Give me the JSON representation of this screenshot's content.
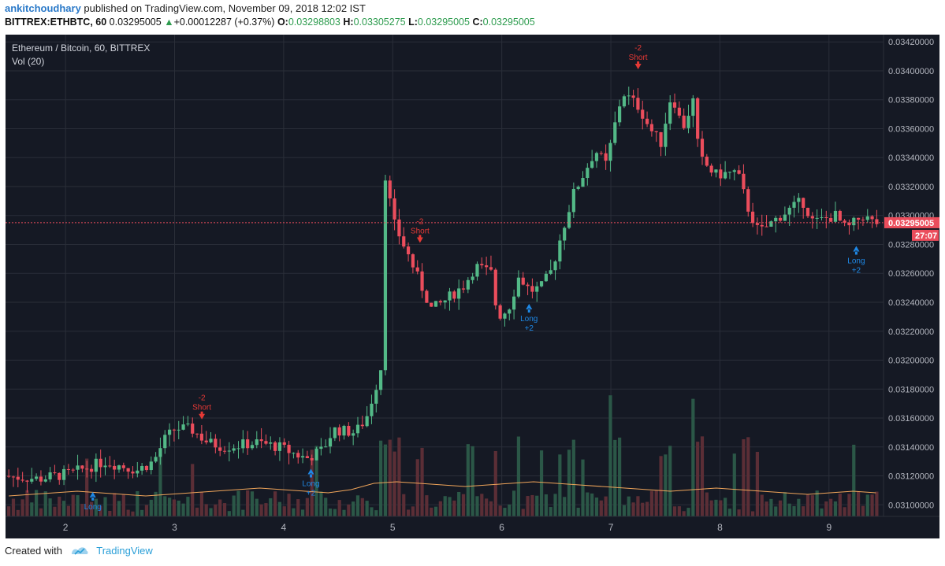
{
  "header": {
    "author": "ankitchoudhary",
    "published": "published on TradingView.com, November 09, 2018 12:02 IST",
    "symbol": "BITTREX:ETHBTC, 60",
    "last": "0.03295005",
    "change_arrow": "▲",
    "change": "+0.00012287 (+0.37%)",
    "o_label": "O:",
    "o_value": "0.03298803",
    "h_label": "H:",
    "h_value": "0.03305275",
    "l_label": "L:",
    "l_value": "0.03295005",
    "c_label": "C:",
    "c_value": "0.03295005"
  },
  "legend": {
    "title": "Ethereum / Bitcoin, 60, BITTREX",
    "volume": "Vol (20)"
  },
  "price_tag": {
    "value": "0.03295005",
    "timer": "27:07"
  },
  "footer": {
    "created": "Created with",
    "brand": "TradingView"
  },
  "colors": {
    "background": "#151924",
    "grid": "#2a2e39",
    "up": "#53b987",
    "down": "#eb4d5c",
    "up_vol": "#2b5747",
    "down_vol": "#5b2e36",
    "ma": "#f0a55a",
    "long_signal": "#1e88e5",
    "short_signal": "#e53935",
    "axis_text": "#b2b5be"
  },
  "signals": [
    {
      "type": "short",
      "x": 3.25,
      "price": 0.03158,
      "label1": "-2",
      "label2": "Short"
    },
    {
      "type": "long",
      "x": 2.25,
      "price": 0.0311,
      "label1": "Long",
      "label2": ""
    },
    {
      "type": "long",
      "x": 4.25,
      "price": 0.03126,
      "label1": "Long",
      "label2": "+2"
    },
    {
      "type": "short",
      "x": 5.25,
      "price": 0.0328,
      "label1": "-2",
      "label2": "Short"
    },
    {
      "type": "long",
      "x": 6.25,
      "price": 0.0324,
      "label1": "Long",
      "label2": "+2"
    },
    {
      "type": "short",
      "x": 7.25,
      "price": 0.034,
      "label1": "-2",
      "label2": "Short"
    },
    {
      "type": "long",
      "x": 9.25,
      "price": 0.0328,
      "label1": "Long",
      "label2": "+2"
    }
  ],
  "chart_data": {
    "type": "candlestick",
    "title": "Ethereum / Bitcoin, 60, BITTREX",
    "xlabel": "",
    "ylabel": "",
    "x_ticks": [
      "2",
      "3",
      "4",
      "5",
      "6",
      "7",
      "8",
      "9"
    ],
    "y_ticks": [
      "0.03100000",
      "0.03120000",
      "0.03140000",
      "0.03160000",
      "0.03180000",
      "0.03200000",
      "0.03220000",
      "0.03240000",
      "0.03260000",
      "0.03280000",
      "0.03300000",
      "0.03320000",
      "0.03340000",
      "0.03360000",
      "0.03380000",
      "0.03400000",
      "0.03420000"
    ],
    "ylim": [
      0.03092,
      0.03425
    ],
    "xlim": [
      1.45,
      9.5
    ],
    "grid": true,
    "price_path": [
      [
        1.45,
        0.0312
      ],
      [
        1.8,
        0.03118
      ],
      [
        2.1,
        0.03122
      ],
      [
        2.4,
        0.0313
      ],
      [
        2.7,
        0.03124
      ],
      [
        2.85,
        0.0313
      ],
      [
        2.95,
        0.03145
      ],
      [
        3.05,
        0.03153
      ],
      [
        3.2,
        0.03152
      ],
      [
        3.35,
        0.03143
      ],
      [
        3.5,
        0.0314
      ],
      [
        3.8,
        0.03143
      ],
      [
        4.0,
        0.0314
      ],
      [
        4.15,
        0.03135
      ],
      [
        4.25,
        0.03132
      ],
      [
        4.4,
        0.03138
      ],
      [
        4.5,
        0.03152
      ],
      [
        4.7,
        0.0315
      ],
      [
        4.8,
        0.0316
      ],
      [
        4.9,
        0.03185
      ],
      [
        4.95,
        0.032
      ],
      [
        4.97,
        0.0333
      ],
      [
        5.05,
        0.03295
      ],
      [
        5.2,
        0.0327
      ],
      [
        5.3,
        0.03252
      ],
      [
        5.4,
        0.03235
      ],
      [
        5.5,
        0.0324
      ],
      [
        5.7,
        0.03252
      ],
      [
        5.8,
        0.03265
      ],
      [
        5.95,
        0.0326
      ],
      [
        6.0,
        0.0323
      ],
      [
        6.1,
        0.03235
      ],
      [
        6.2,
        0.03258
      ],
      [
        6.3,
        0.03248
      ],
      [
        6.4,
        0.0325
      ],
      [
        6.5,
        0.03262
      ],
      [
        6.6,
        0.0329
      ],
      [
        6.7,
        0.03315
      ],
      [
        6.8,
        0.0333
      ],
      [
        6.9,
        0.03345
      ],
      [
        7.0,
        0.03335
      ],
      [
        7.1,
        0.0337
      ],
      [
        7.15,
        0.03385
      ],
      [
        7.3,
        0.03375
      ],
      [
        7.4,
        0.0336
      ],
      [
        7.5,
        0.0335
      ],
      [
        7.6,
        0.03385
      ],
      [
        7.7,
        0.0336
      ],
      [
        7.8,
        0.0338
      ],
      [
        7.85,
        0.0334
      ],
      [
        8.0,
        0.03328
      ],
      [
        8.2,
        0.0333
      ],
      [
        8.3,
        0.03305
      ],
      [
        8.4,
        0.03288
      ],
      [
        8.6,
        0.033
      ],
      [
        8.8,
        0.0331
      ],
      [
        8.9,
        0.03295
      ],
      [
        9.1,
        0.033
      ],
      [
        9.2,
        0.0329
      ],
      [
        9.35,
        0.033
      ],
      [
        9.45,
        0.03295
      ]
    ],
    "volume_ma_levels": [
      0.4,
      0.45,
      0.5,
      0.55,
      0.5,
      0.45,
      0.4,
      0.45,
      0.5,
      0.55,
      0.6,
      0.65,
      0.6,
      0.55,
      0.5,
      0.6,
      0.8,
      0.85,
      0.8,
      0.75,
      0.7,
      0.75,
      0.8,
      0.85,
      0.8,
      0.75,
      0.7,
      0.65,
      0.6,
      0.55,
      0.6,
      0.65,
      0.6,
      0.55,
      0.5,
      0.45,
      0.5,
      0.55,
      0.5
    ]
  }
}
